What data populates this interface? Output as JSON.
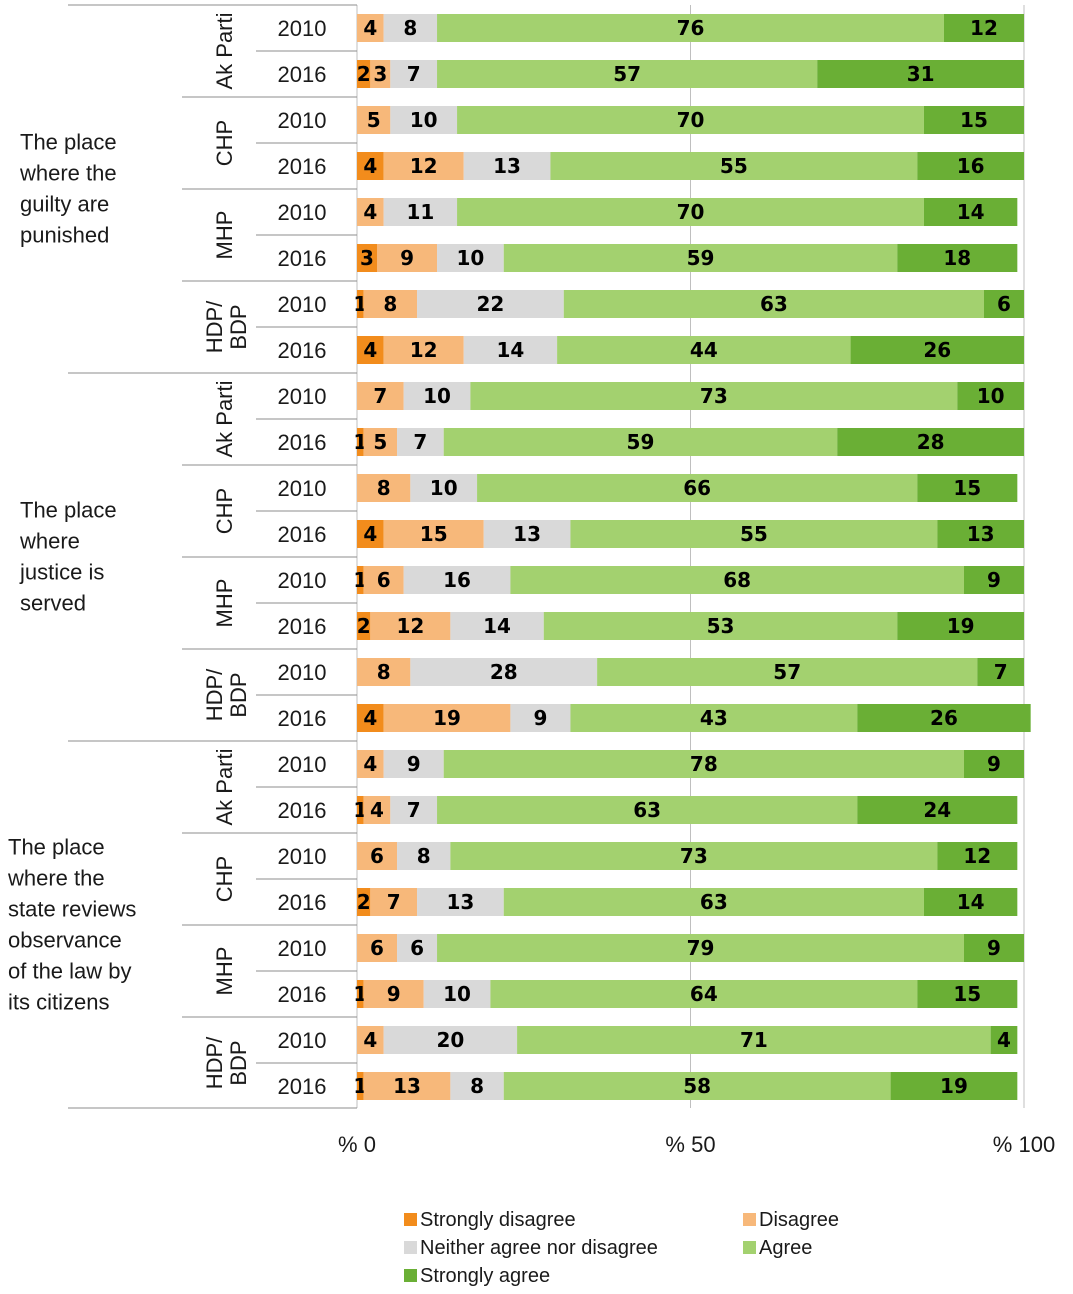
{
  "chart_data": {
    "type": "bar",
    "orientation": "horizontal",
    "stacked": true,
    "xlim": [
      0,
      100
    ],
    "xticks": [
      "% 0",
      "% 50",
      "% 100"
    ],
    "grid": true,
    "legend_position": "bottom",
    "series": [
      {
        "name": "Strongly disagree",
        "color": "#f28c1c"
      },
      {
        "name": "Disagree",
        "color": "#f7b87a"
      },
      {
        "name": "Neither agree nor disagree",
        "color": "#d9d9d9"
      },
      {
        "name": "Agree",
        "color": "#a3d16f"
      },
      {
        "name": "Strongly agree",
        "color": "#6aaf35"
      }
    ],
    "groups": [
      {
        "label": [
          "The place",
          "where the",
          "guilty are",
          "punished"
        ],
        "parties": [
          {
            "label": [
              "Ak Parti"
            ],
            "rows": [
              {
                "year": "2010",
                "values": [
                  0,
                  4,
                  8,
                  76,
                  12
                ],
                "labels": [
                  "",
                  "4",
                  "8",
                  "76",
                  "12"
                ]
              },
              {
                "year": "2016",
                "values": [
                  2,
                  3,
                  7,
                  57,
                  31
                ],
                "labels": [
                  "2",
                  "3",
                  "7",
                  "57",
                  "31"
                ]
              }
            ]
          },
          {
            "label": [
              "CHP"
            ],
            "rows": [
              {
                "year": "2010",
                "values": [
                  0,
                  5,
                  10,
                  70,
                  15
                ],
                "labels": [
                  "",
                  "5",
                  "10",
                  "70",
                  "15"
                ]
              },
              {
                "year": "2016",
                "values": [
                  4,
                  12,
                  13,
                  55,
                  16
                ],
                "labels": [
                  "4",
                  "12",
                  "13",
                  "55",
                  "16"
                ]
              }
            ]
          },
          {
            "label": [
              "MHP"
            ],
            "rows": [
              {
                "year": "2010",
                "values": [
                  0,
                  4,
                  11,
                  70,
                  14
                ],
                "labels": [
                  "",
                  "4",
                  "11",
                  "70",
                  "14"
                ]
              },
              {
                "year": "2016",
                "values": [
                  3,
                  9,
                  10,
                  59,
                  18
                ],
                "labels": [
                  "3",
                  "9",
                  "10",
                  "59",
                  "18"
                ]
              }
            ]
          },
          {
            "label": [
              "HDP/",
              "BDP"
            ],
            "rows": [
              {
                "year": "2010",
                "values": [
                  1,
                  8,
                  22,
                  63,
                  6
                ],
                "labels": [
                  "1",
                  "8",
                  "22",
                  "63",
                  "6"
                ]
              },
              {
                "year": "2016",
                "values": [
                  4,
                  12,
                  14,
                  44,
                  26
                ],
                "labels": [
                  "4",
                  "12",
                  "14",
                  "44",
                  "26"
                ]
              }
            ]
          }
        ]
      },
      {
        "label": [
          "The place",
          "where",
          "justice is",
          "served"
        ],
        "parties": [
          {
            "label": [
              "Ak Parti"
            ],
            "rows": [
              {
                "year": "2010",
                "values": [
                  0,
                  7,
                  10,
                  73,
                  10
                ],
                "labels": [
                  "",
                  "7",
                  "10",
                  "73",
                  "10"
                ]
              },
              {
                "year": "2016",
                "values": [
                  1,
                  5,
                  7,
                  59,
                  28
                ],
                "labels": [
                  "1",
                  "5",
                  "7",
                  "59",
                  "28"
                ]
              }
            ]
          },
          {
            "label": [
              "CHP"
            ],
            "rows": [
              {
                "year": "2010",
                "values": [
                  0,
                  8,
                  10,
                  66,
                  15
                ],
                "labels": [
                  "",
                  "8",
                  "10",
                  "66",
                  "15"
                ]
              },
              {
                "year": "2016",
                "values": [
                  4,
                  15,
                  13,
                  55,
                  13
                ],
                "labels": [
                  "4",
                  "15",
                  "13",
                  "55",
                  "13"
                ]
              }
            ]
          },
          {
            "label": [
              "MHP"
            ],
            "rows": [
              {
                "year": "2010",
                "values": [
                  1,
                  6,
                  16,
                  68,
                  9
                ],
                "labels": [
                  "1",
                  "6",
                  "16",
                  "68",
                  "9"
                ]
              },
              {
                "year": "2016",
                "values": [
                  2,
                  12,
                  14,
                  53,
                  19
                ],
                "labels": [
                  "2",
                  "12",
                  "14",
                  "53",
                  "19"
                ]
              }
            ]
          },
          {
            "label": [
              "HDP/",
              "BDP"
            ],
            "rows": [
              {
                "year": "2010",
                "values": [
                  0,
                  8,
                  28,
                  57,
                  7
                ],
                "labels": [
                  "",
                  "8",
                  "28",
                  "57",
                  "7"
                ]
              },
              {
                "year": "2016",
                "values": [
                  4,
                  19,
                  9,
                  43,
                  26
                ],
                "labels": [
                  "4",
                  "19",
                  "9",
                  "43",
                  "26"
                ]
              }
            ]
          }
        ]
      },
      {
        "label": [
          "The place",
          "where the",
          "state reviews",
          "observance",
          "of the law by",
          "its citizens"
        ],
        "parties": [
          {
            "label": [
              "Ak Parti"
            ],
            "rows": [
              {
                "year": "2010",
                "values": [
                  0,
                  4,
                  9,
                  78,
                  9
                ],
                "labels": [
                  "",
                  "4",
                  "9",
                  "78",
                  "9"
                ]
              },
              {
                "year": "2016",
                "values": [
                  1,
                  4,
                  7,
                  63,
                  24
                ],
                "labels": [
                  "1",
                  "4",
                  "7",
                  "63",
                  "24"
                ]
              }
            ]
          },
          {
            "label": [
              "CHP"
            ],
            "rows": [
              {
                "year": "2010",
                "values": [
                  0,
                  6,
                  8,
                  73,
                  12
                ],
                "labels": [
                  "",
                  "6",
                  "8",
                  "73",
                  "12"
                ]
              },
              {
                "year": "2016",
                "values": [
                  2,
                  7,
                  13,
                  63,
                  14
                ],
                "labels": [
                  "2",
                  "7",
                  "13",
                  "63",
                  "14"
                ]
              }
            ]
          },
          {
            "label": [
              "MHP"
            ],
            "rows": [
              {
                "year": "2010",
                "values": [
                  0,
                  6,
                  6,
                  79,
                  9
                ],
                "labels": [
                  "",
                  "6",
                  "6",
                  "79",
                  "9"
                ]
              },
              {
                "year": "2016",
                "values": [
                  1,
                  9,
                  10,
                  64,
                  15
                ],
                "labels": [
                  "1",
                  "9",
                  "10",
                  "64",
                  "15"
                ]
              }
            ]
          },
          {
            "label": [
              "HDP/",
              "BDP"
            ],
            "rows": [
              {
                "year": "2010",
                "values": [
                  0,
                  4,
                  20,
                  71,
                  4
                ],
                "labels": [
                  "",
                  "4",
                  "20",
                  "71",
                  "4"
                ]
              },
              {
                "year": "2016",
                "values": [
                  1,
                  13,
                  8,
                  58,
                  19
                ],
                "labels": [
                  "1",
                  "13",
                  "8",
                  "58",
                  "19"
                ]
              }
            ]
          }
        ]
      }
    ]
  }
}
